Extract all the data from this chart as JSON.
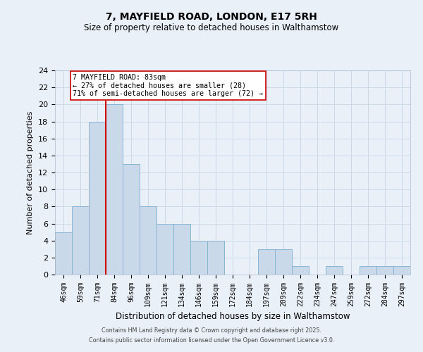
{
  "title_line1": "7, MAYFIELD ROAD, LONDON, E17 5RH",
  "title_line2": "Size of property relative to detached houses in Walthamstow",
  "xlabel": "Distribution of detached houses by size in Walthamstow",
  "ylabel": "Number of detached properties",
  "bar_labels": [
    "46sqm",
    "59sqm",
    "71sqm",
    "84sqm",
    "96sqm",
    "109sqm",
    "121sqm",
    "134sqm",
    "146sqm",
    "159sqm",
    "172sqm",
    "184sqm",
    "197sqm",
    "209sqm",
    "222sqm",
    "234sqm",
    "247sqm",
    "259sqm",
    "272sqm",
    "284sqm",
    "297sqm"
  ],
  "bar_values": [
    5,
    8,
    18,
    20,
    13,
    8,
    6,
    6,
    4,
    4,
    0,
    0,
    3,
    3,
    1,
    0,
    1,
    0,
    1,
    1,
    1
  ],
  "bar_color": "#c9d9ea",
  "bar_edge_color": "#8ab4d4",
  "ylim": [
    0,
    24
  ],
  "yticks": [
    0,
    2,
    4,
    6,
    8,
    10,
    12,
    14,
    16,
    18,
    20,
    22,
    24
  ],
  "red_line_index": 3,
  "annotation_title": "7 MAYFIELD ROAD: 83sqm",
  "annotation_line2": "← 27% of detached houses are smaller (28)",
  "annotation_line3": "71% of semi-detached houses are larger (72) →",
  "annotation_box_color": "#ffffff",
  "annotation_box_edge": "#cc0000",
  "red_line_color": "#cc0000",
  "grid_color": "#ccd9e8",
  "background_color": "#eaf0f8",
  "footer_line1": "Contains HM Land Registry data © Crown copyright and database right 2025.",
  "footer_line2": "Contains public sector information licensed under the Open Government Licence v3.0."
}
